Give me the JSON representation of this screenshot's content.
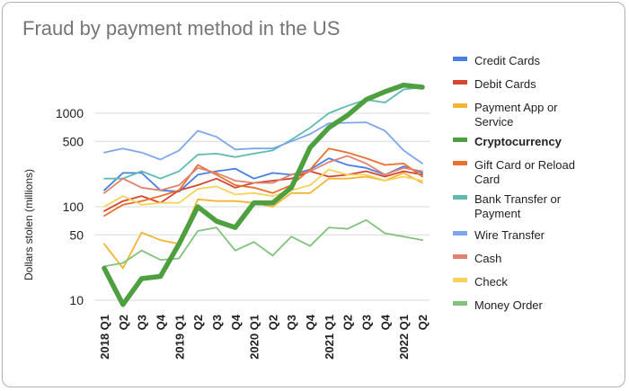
{
  "chart_data": {
    "type": "line",
    "title": "Fraud by payment method in the US",
    "ylabel": "Dollars stolen (millions)",
    "xlabel": "",
    "y_scale": "log",
    "ylim": [
      9,
      2200
    ],
    "y_ticks": [
      10,
      50,
      100,
      500,
      1000
    ],
    "grid": "horizontal",
    "legend_position": "right",
    "x": [
      "2018 Q1",
      "Q2",
      "Q3",
      "Q4",
      "2019 Q1",
      "Q2",
      "Q3",
      "Q4",
      "2020 Q1",
      "Q2",
      "Q3",
      "Q4",
      "2021 Q1",
      "Q2",
      "Q3",
      "Q4",
      "2022 Q1",
      "Q2"
    ],
    "x_tick_labels": [
      "2018 Q1",
      "Q2",
      "Q3",
      "Q4",
      "2019 Q1",
      "Q2",
      "Q3",
      "Q4",
      "2020 Q1",
      "Q2",
      "Q3",
      "Q4",
      "2021 Q1",
      "Q2",
      "Q3",
      "Q4",
      "2022 Q1",
      "Q2"
    ],
    "series": [
      {
        "name": "Credit Cards",
        "color": "#4a7fe0",
        "bold": false,
        "values": [
          150,
          230,
          230,
          150,
          145,
          220,
          240,
          255,
          200,
          230,
          220,
          250,
          330,
          280,
          260,
          220,
          270,
          230
        ]
      },
      {
        "name": "Debit Cards",
        "color": "#d64530",
        "bold": false,
        "values": [
          90,
          115,
          130,
          110,
          150,
          170,
          200,
          160,
          180,
          190,
          200,
          240,
          210,
          220,
          240,
          210,
          240,
          220
        ]
      },
      {
        "name": "Payment App or Service",
        "color": "#f2b632",
        "bold": false,
        "values": [
          40,
          22,
          53,
          44,
          40,
          120,
          115,
          115,
          110,
          100,
          140,
          140,
          200,
          200,
          210,
          190,
          230,
          180
        ]
      },
      {
        "name": "Cryptocurrency",
        "color": "#4d9f3f",
        "bold": true,
        "values": [
          22,
          9,
          17,
          18,
          40,
          100,
          70,
          60,
          110,
          110,
          160,
          430,
          700,
          950,
          1400,
          1700,
          2000,
          1900
        ]
      },
      {
        "name": "Gift Card or Reload Card",
        "color": "#e8712f",
        "bold": false,
        "values": [
          80,
          105,
          115,
          130,
          150,
          280,
          220,
          170,
          160,
          140,
          170,
          250,
          420,
          380,
          330,
          280,
          290,
          210
        ]
      },
      {
        "name": "Bank Transfer or Payment",
        "color": "#5fbab0",
        "bold": false,
        "values": [
          200,
          200,
          240,
          200,
          240,
          360,
          370,
          340,
          370,
          400,
          520,
          700,
          1000,
          1200,
          1400,
          1300,
          1800,
          1900
        ]
      },
      {
        "name": "Wire Transfer",
        "color": "#7ea7ea",
        "bold": false,
        "values": [
          380,
          420,
          380,
          320,
          400,
          650,
          560,
          410,
          420,
          420,
          500,
          600,
          780,
          790,
          800,
          650,
          400,
          290
        ]
      },
      {
        "name": "Cash",
        "color": "#e08270",
        "bold": false,
        "values": [
          140,
          200,
          160,
          150,
          170,
          260,
          230,
          190,
          180,
          180,
          220,
          240,
          300,
          350,
          290,
          220,
          260,
          240
        ]
      },
      {
        "name": "Check",
        "color": "#f6d35a",
        "bold": false,
        "values": [
          100,
          130,
          105,
          110,
          110,
          155,
          165,
          135,
          140,
          130,
          150,
          170,
          250,
          220,
          220,
          190,
          210,
          190
        ]
      },
      {
        "name": "Money Order",
        "color": "#81c27c",
        "bold": false,
        "values": [
          23,
          25,
          34,
          27,
          28,
          55,
          60,
          34,
          42,
          30,
          48,
          38,
          60,
          58,
          72,
          52,
          48,
          44
        ]
      }
    ]
  }
}
